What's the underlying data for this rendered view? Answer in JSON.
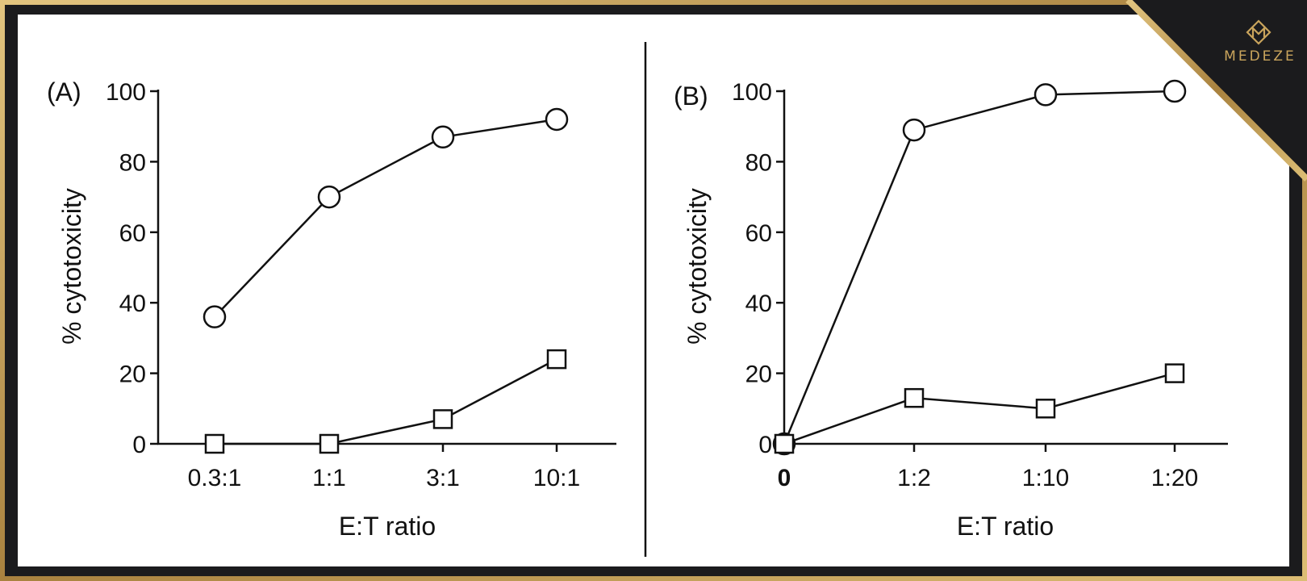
{
  "brand": {
    "name": "MEDEZE",
    "logo_icon": "medeze-logo-icon"
  },
  "colors": {
    "frame_gold": "#c9a45c",
    "frame_dark": "#1b1b1d",
    "panel_bg": "#ffffff",
    "ink": "#111111"
  },
  "chart_data": [
    {
      "panel_label": "(A)",
      "type": "line",
      "categories": [
        "0.3:1",
        "1:1",
        "3:1",
        "10:1"
      ],
      "xlabel": "E:T ratio",
      "ylabel": "% cytotoxicity",
      "ylim": [
        0,
        100
      ],
      "yticks": [
        "0",
        "20",
        "40",
        "60",
        "80",
        "100"
      ],
      "series": [
        {
          "name": "circle-series",
          "marker": "circle",
          "values": [
            36,
            70,
            87,
            92
          ]
        },
        {
          "name": "square-series",
          "marker": "square",
          "values": [
            0,
            0,
            7,
            24
          ]
        }
      ]
    },
    {
      "panel_label": "(B)",
      "type": "line",
      "categories": [
        "0",
        "1:2",
        "1:10",
        "1:20"
      ],
      "xlabel": "E:T ratio",
      "ylabel": "% cytotoxicity",
      "ylim": [
        0,
        100
      ],
      "yticks": [
        "0",
        "20",
        "40",
        "60",
        "80",
        "100"
      ],
      "series": [
        {
          "name": "circle-series",
          "marker": "circle",
          "values": [
            0,
            89,
            99,
            100
          ]
        },
        {
          "name": "square-series",
          "marker": "square",
          "values": [
            0,
            13,
            10,
            20
          ]
        }
      ]
    }
  ]
}
